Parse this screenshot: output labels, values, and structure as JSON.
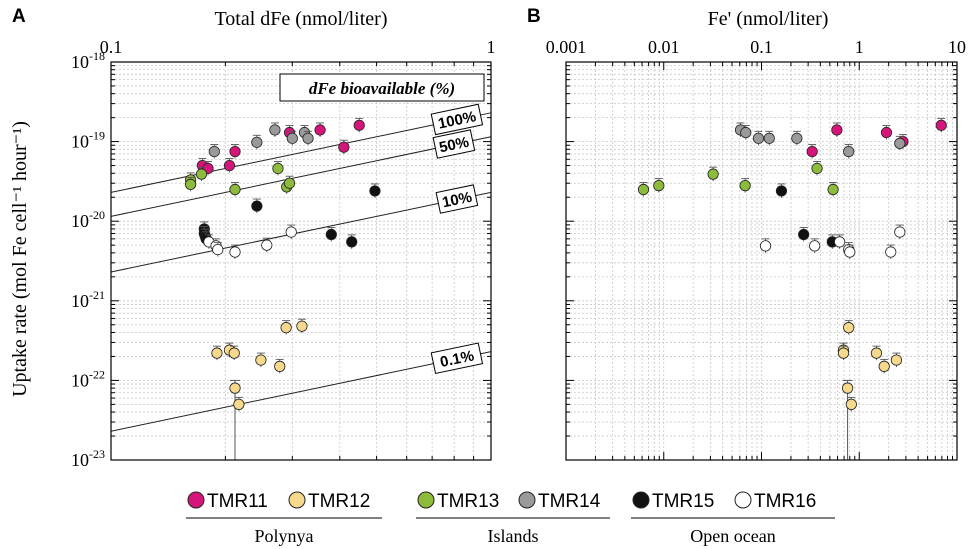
{
  "colors": {
    "TMR11": "#d6157a",
    "TMR12": "#f6d98c",
    "TMR13": "#8dbb3c",
    "TMR14": "#9a9a9a",
    "TMR15": "#111111",
    "TMR16": "#ffffff"
  },
  "chart_data": [
    {
      "panel": "A",
      "type": "scatter",
      "xlabel": "Total dFe (nmol/liter)",
      "ylabel": "Uptake rate (mol Fe cell⁻¹ hour⁻¹)",
      "xscale": "log",
      "yscale": "log",
      "xlim": [
        0.1,
        1
      ],
      "ylim": [
        1e-23,
        1e-18
      ],
      "x_ticks": [
        "0.1",
        "1"
      ],
      "grid": true,
      "box_label": "dFe bioavailable (%)",
      "reference_lines": [
        {
          "label": "100%",
          "y_at_x_0_1": 2.3e-20,
          "y_at_x_1": 2.3e-19
        },
        {
          "label": "50%",
          "y_at_x_0_1": 1.15e-20,
          "y_at_x_1": 1.15e-19
        },
        {
          "label": "10%",
          "y_at_x_0_1": 2.3e-21,
          "y_at_x_1": 2.3e-20
        },
        {
          "label": "0.1%",
          "y_at_x_0_1": 2.3e-23,
          "y_at_x_1": 2.3e-22
        }
      ],
      "series": [
        {
          "name": "TMR11",
          "points": [
            {
              "x": 0.174,
              "y": 5e-20
            },
            {
              "x": 0.18,
              "y": 4.6e-20
            },
            {
              "x": 0.205,
              "y": 5e-20
            },
            {
              "x": 0.212,
              "y": 7.5e-20
            },
            {
              "x": 0.295,
              "y": 1.3e-19
            },
            {
              "x": 0.355,
              "y": 1.4e-19
            },
            {
              "x": 0.41,
              "y": 8.5e-20
            },
            {
              "x": 0.45,
              "y": 1.6e-19
            }
          ]
        },
        {
          "name": "TMR12",
          "points": [
            {
              "x": 0.19,
              "y": 2.2e-22
            },
            {
              "x": 0.205,
              "y": 2.4e-22
            },
            {
              "x": 0.211,
              "y": 2.2e-22
            },
            {
              "x": 0.212,
              "y": 8e-23,
              "err": [
                1e-23,
                1e-22
              ]
            },
            {
              "x": 0.217,
              "y": 5e-23
            },
            {
              "x": 0.248,
              "y": 1.8e-22
            },
            {
              "x": 0.278,
              "y": 1.5e-22
            },
            {
              "x": 0.289,
              "y": 4.6e-22
            },
            {
              "x": 0.318,
              "y": 4.8e-22
            }
          ]
        },
        {
          "name": "TMR13",
          "points": [
            {
              "x": 0.162,
              "y": 3.3e-20
            },
            {
              "x": 0.162,
              "y": 2.9e-20
            },
            {
              "x": 0.173,
              "y": 3.9e-20
            },
            {
              "x": 0.212,
              "y": 2.5e-20
            },
            {
              "x": 0.275,
              "y": 4.6e-20
            },
            {
              "x": 0.29,
              "y": 2.7e-20
            },
            {
              "x": 0.295,
              "y": 3e-20
            }
          ]
        },
        {
          "name": "TMR14",
          "points": [
            {
              "x": 0.187,
              "y": 7.5e-20
            },
            {
              "x": 0.242,
              "y": 9.8e-20
            },
            {
              "x": 0.27,
              "y": 1.4e-19
            },
            {
              "x": 0.3,
              "y": 1.1e-19
            },
            {
              "x": 0.323,
              "y": 1.3e-19
            },
            {
              "x": 0.33,
              "y": 1.1e-19
            }
          ]
        },
        {
          "name": "TMR15",
          "points": [
            {
              "x": 0.176,
              "y": 8e-21
            },
            {
              "x": 0.176,
              "y": 7e-21
            },
            {
              "x": 0.177,
              "y": 6.5e-21
            },
            {
              "x": 0.178,
              "y": 6e-21
            },
            {
              "x": 0.242,
              "y": 1.55e-20
            },
            {
              "x": 0.38,
              "y": 6.8e-21
            },
            {
              "x": 0.43,
              "y": 5.5e-21
            },
            {
              "x": 0.495,
              "y": 2.4e-20
            }
          ]
        },
        {
          "name": "TMR16",
          "points": [
            {
              "x": 0.181,
              "y": 5.5e-21
            },
            {
              "x": 0.189,
              "y": 4.9e-21
            },
            {
              "x": 0.191,
              "y": 4.4e-21
            },
            {
              "x": 0.212,
              "y": 4.1e-21
            },
            {
              "x": 0.257,
              "y": 5e-21
            },
            {
              "x": 0.298,
              "y": 7.3e-21
            }
          ]
        }
      ]
    },
    {
      "panel": "B",
      "type": "scatter",
      "xlabel": "Fe' (nmol/liter)",
      "xscale": "log",
      "yscale": "log",
      "xlim": [
        0.001,
        10
      ],
      "ylim": [
        1e-23,
        1e-18
      ],
      "x_ticks": [
        "0.001",
        "0.01",
        "0.1",
        "1",
        "10"
      ],
      "grid": true,
      "series": [
        {
          "name": "TMR11",
          "points": [
            {
              "x": 0.33,
              "y": 7.5e-20
            },
            {
              "x": 0.59,
              "y": 1.4e-19
            },
            {
              "x": 1.9,
              "y": 1.3e-19
            },
            {
              "x": 2.8,
              "y": 1e-19
            },
            {
              "x": 6.9,
              "y": 1.6e-19
            }
          ]
        },
        {
          "name": "TMR12",
          "points": [
            {
              "x": 0.69,
              "y": 2.4e-22
            },
            {
              "x": 0.69,
              "y": 2.2e-22
            },
            {
              "x": 0.76,
              "y": 8e-23,
              "err": [
                1e-23,
                1e-22
              ]
            },
            {
              "x": 0.78,
              "y": 4.6e-22
            },
            {
              "x": 0.83,
              "y": 5e-23
            },
            {
              "x": 1.5,
              "y": 2.2e-22
            },
            {
              "x": 1.8,
              "y": 1.5e-22
            },
            {
              "x": 2.4,
              "y": 1.8e-22
            }
          ]
        },
        {
          "name": "TMR13",
          "points": [
            {
              "x": 0.0062,
              "y": 2.5e-20
            },
            {
              "x": 0.0089,
              "y": 2.8e-20
            },
            {
              "x": 0.032,
              "y": 3.9e-20
            },
            {
              "x": 0.068,
              "y": 2.8e-20
            },
            {
              "x": 0.37,
              "y": 4.6e-20
            },
            {
              "x": 0.54,
              "y": 2.5e-20
            }
          ]
        },
        {
          "name": "TMR14",
          "points": [
            {
              "x": 0.061,
              "y": 1.4e-19
            },
            {
              "x": 0.069,
              "y": 1.3e-19
            },
            {
              "x": 0.093,
              "y": 1.1e-19
            },
            {
              "x": 0.12,
              "y": 1.1e-19
            },
            {
              "x": 0.23,
              "y": 1.1e-19
            },
            {
              "x": 0.78,
              "y": 7.5e-20
            },
            {
              "x": 2.6,
              "y": 9.5e-20
            }
          ]
        },
        {
          "name": "TMR15",
          "points": [
            {
              "x": 0.16,
              "y": 2.4e-20
            },
            {
              "x": 0.27,
              "y": 6.8e-21
            },
            {
              "x": 0.53,
              "y": 5.5e-21
            }
          ]
        },
        {
          "name": "TMR16",
          "points": [
            {
              "x": 0.11,
              "y": 4.9e-21
            },
            {
              "x": 0.35,
              "y": 4.9e-21
            },
            {
              "x": 0.63,
              "y": 5.5e-21
            },
            {
              "x": 0.78,
              "y": 4.4e-21
            },
            {
              "x": 0.8,
              "y": 4.1e-21
            },
            {
              "x": 2.1,
              "y": 4.1e-21
            },
            {
              "x": 2.6,
              "y": 7.3e-21
            }
          ]
        }
      ]
    }
  ],
  "panel_labels": {
    "A": "A",
    "B": "B"
  },
  "y_ticks": [
    {
      "base": "10",
      "exp": "-18"
    },
    {
      "base": "10",
      "exp": "-19"
    },
    {
      "base": "10",
      "exp": "-20"
    },
    {
      "base": "10",
      "exp": "-21"
    },
    {
      "base": "10",
      "exp": "-22"
    },
    {
      "base": "10",
      "exp": "-23"
    }
  ],
  "legend": {
    "items": [
      {
        "name": "TMR11"
      },
      {
        "name": "TMR12"
      },
      {
        "name": "TMR13"
      },
      {
        "name": "TMR14"
      },
      {
        "name": "TMR15"
      },
      {
        "name": "TMR16"
      }
    ],
    "groups": [
      "Polynya",
      "Islands",
      "Open ocean"
    ]
  }
}
